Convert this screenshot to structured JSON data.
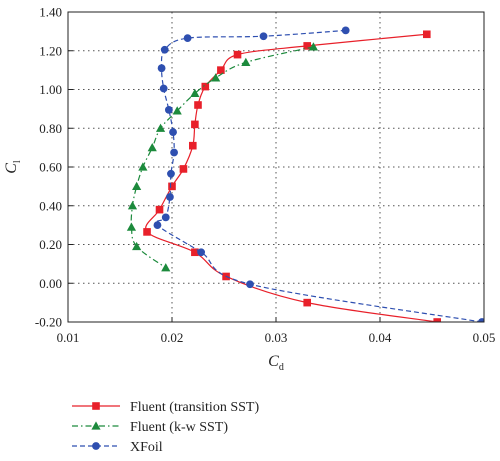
{
  "chart_data": {
    "type": "line",
    "xlabel": "C",
    "xlabel_sub": "d",
    "ylabel": "C",
    "ylabel_sub": "l",
    "xlim": [
      0.01,
      0.05
    ],
    "ylim": [
      -0.2,
      1.4
    ],
    "xticks": [
      0.01,
      0.02,
      0.03,
      0.04,
      0.05
    ],
    "xtick_labels": [
      "0.01",
      "0.02",
      "0.03",
      "0.04",
      "0.05"
    ],
    "yticks": [
      -0.2,
      0.0,
      0.2,
      0.4,
      0.6,
      0.8,
      1.0,
      1.2,
      1.4
    ],
    "ytick_labels": [
      "-0.20",
      "0.00",
      "0.20",
      "0.40",
      "0.60",
      "0.80",
      "1.00",
      "1.20",
      "1.40"
    ],
    "grid": true,
    "legend_position": "bottom-left, below plot",
    "series": [
      {
        "name": "Fluent (transition SST)",
        "color": "#e8202a",
        "marker": "square",
        "line_style": "solid",
        "points": [
          {
            "x": 0.0445,
            "y": 1.285
          },
          {
            "x": 0.033,
            "y": 1.225
          },
          {
            "x": 0.0263,
            "y": 1.18
          },
          {
            "x": 0.0247,
            "y": 1.1
          },
          {
            "x": 0.0232,
            "y": 1.015
          },
          {
            "x": 0.0225,
            "y": 0.92
          },
          {
            "x": 0.0222,
            "y": 0.82
          },
          {
            "x": 0.022,
            "y": 0.71
          },
          {
            "x": 0.0211,
            "y": 0.59
          },
          {
            "x": 0.02,
            "y": 0.5
          },
          {
            "x": 0.0188,
            "y": 0.38
          },
          {
            "x": 0.0176,
            "y": 0.265
          },
          {
            "x": 0.0222,
            "y": 0.16
          },
          {
            "x": 0.0252,
            "y": 0.035
          },
          {
            "x": 0.033,
            "y": -0.1
          },
          {
            "x": 0.0455,
            "y": -0.2
          }
        ]
      },
      {
        "name": "Fluent (k-w SST)",
        "color": "#1c8a3c",
        "marker": "triangle",
        "line_style": "dash-dot",
        "points": [
          {
            "x": 0.0336,
            "y": 1.22
          },
          {
            "x": 0.0271,
            "y": 1.14
          },
          {
            "x": 0.0242,
            "y": 1.06
          },
          {
            "x": 0.0222,
            "y": 0.98
          },
          {
            "x": 0.0205,
            "y": 0.89
          },
          {
            "x": 0.0189,
            "y": 0.8
          },
          {
            "x": 0.0181,
            "y": 0.7
          },
          {
            "x": 0.0172,
            "y": 0.6
          },
          {
            "x": 0.0166,
            "y": 0.5
          },
          {
            "x": 0.0162,
            "y": 0.4
          },
          {
            "x": 0.0161,
            "y": 0.29
          },
          {
            "x": 0.0166,
            "y": 0.19
          },
          {
            "x": 0.0194,
            "y": 0.08
          }
        ]
      },
      {
        "name": "XFoil",
        "color": "#2e4fb0",
        "marker": "circle",
        "line_style": "dashed",
        "points": [
          {
            "x": 0.0367,
            "y": 1.305
          },
          {
            "x": 0.0288,
            "y": 1.275
          },
          {
            "x": 0.0215,
            "y": 1.265
          },
          {
            "x": 0.0193,
            "y": 1.205
          },
          {
            "x": 0.019,
            "y": 1.11
          },
          {
            "x": 0.0192,
            "y": 1.005
          },
          {
            "x": 0.0197,
            "y": 0.895
          },
          {
            "x": 0.0201,
            "y": 0.78
          },
          {
            "x": 0.0202,
            "y": 0.675
          },
          {
            "x": 0.0199,
            "y": 0.565
          },
          {
            "x": 0.0198,
            "y": 0.445
          },
          {
            "x": 0.0194,
            "y": 0.34
          },
          {
            "x": 0.0186,
            "y": 0.3
          },
          {
            "x": 0.0228,
            "y": 0.16
          },
          {
            "x": 0.0275,
            "y": -0.005
          },
          {
            "x": 0.0498,
            "y": -0.2
          }
        ]
      }
    ]
  }
}
